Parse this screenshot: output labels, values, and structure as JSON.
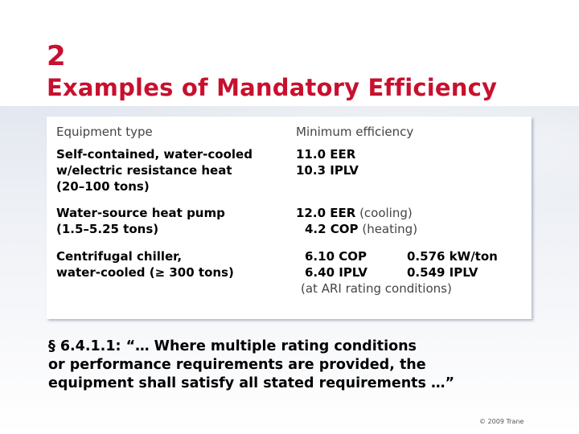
{
  "slide": {
    "number": "2",
    "title": "Examples of Mandatory Efficiency"
  },
  "table": {
    "headers": [
      "Equipment type",
      "Minimum efficiency"
    ],
    "rows": [
      {
        "equipment": [
          "Self-contained, water-cooled",
          "w/electric resistance heat",
          "(20–100 tons)"
        ],
        "efficiency": [
          {
            "main": "11.0 EER",
            "note": ""
          },
          {
            "main": "10.3 IPLV",
            "note": ""
          }
        ]
      },
      {
        "equipment": [
          "Water-source heat pump",
          "(1.5–5.25 tons)"
        ],
        "efficiency": [
          {
            "main": "12.0 EER",
            "note": "(cooling)"
          },
          {
            "main": "4.2 COP",
            "note": "(heating)"
          }
        ]
      },
      {
        "equipment": [
          "Centrifugal chiller,",
          "water-cooled (≥ 300 tons)"
        ],
        "efficiency": [
          {
            "main": "6.10 COP",
            "alt": "0.576 kW/ton"
          },
          {
            "main": "6.40 IPLV",
            "alt": "0.549 IPLV"
          },
          {
            "note": "(at ARI rating conditions)"
          }
        ]
      }
    ]
  },
  "quote": {
    "lines": [
      "§ 6.4.1.1: “… Where multiple rating conditions",
      "or performance requirements are provided, the",
      "equipment shall satisfy all stated requirements …”"
    ]
  },
  "footer": {
    "copyright": "© 2009 Trane"
  },
  "colors": {
    "title": "#c8102e"
  }
}
